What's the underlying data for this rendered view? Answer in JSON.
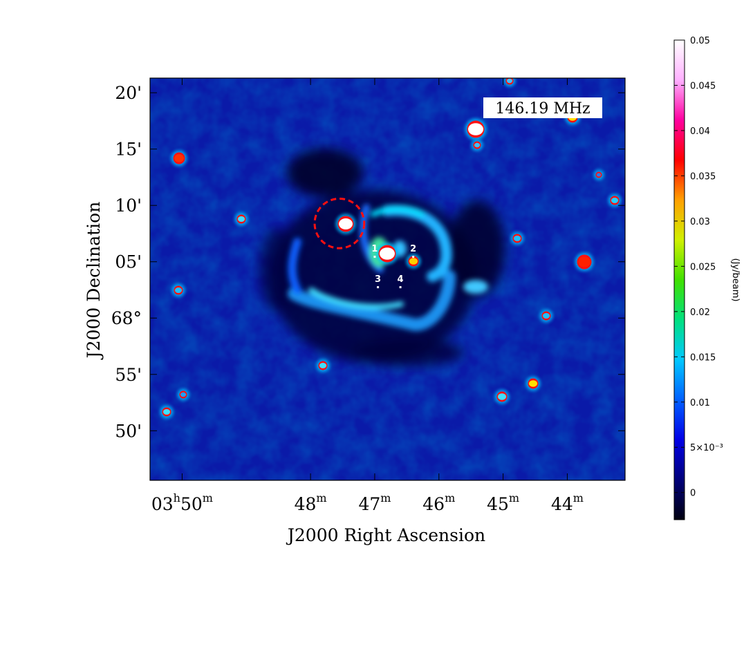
{
  "chart_data": {
    "type": "heatmap",
    "frequency_label": "146.19 MHz",
    "xlabel": "J2000 Right Ascension",
    "ylabel": "J2000 Declination",
    "x_ticks": [
      {
        "main": "03",
        "sup1": "h",
        "mid": "50",
        "sup2": "m",
        "ra_min": 50
      },
      {
        "main": "48",
        "sup1": "",
        "mid": "",
        "sup2": "m",
        "ra_min": 48
      },
      {
        "main": "47",
        "sup1": "",
        "mid": "",
        "sup2": "m",
        "ra_min": 47
      },
      {
        "main": "46",
        "sup1": "",
        "mid": "",
        "sup2": "m",
        "ra_min": 46
      },
      {
        "main": "45",
        "sup1": "",
        "mid": "",
        "sup2": "m",
        "ra_min": 45
      },
      {
        "main": "44",
        "sup1": "",
        "mid": "",
        "sup2": "m",
        "ra_min": 44
      }
    ],
    "x_range_ra_min": [
      50.5,
      43.1
    ],
    "y_ticks": [
      {
        "label": "20'",
        "dec_arcmin": 20
      },
      {
        "label": "15'",
        "dec_arcmin": 15
      },
      {
        "label": "10'",
        "dec_arcmin": 10
      },
      {
        "label": "05'",
        "dec_arcmin": 5
      },
      {
        "label": "68°",
        "dec_arcmin": 0
      },
      {
        "label": "55'",
        "dec_arcmin": -5
      },
      {
        "label": "50'",
        "dec_arcmin": -10
      }
    ],
    "y_range_dec_arcmin": [
      -14.4,
      21.3
    ],
    "colorbar": {
      "label": "(Jy/beam)",
      "range": [
        -0.003,
        0.05
      ],
      "ticks": [
        {
          "label": "0.05",
          "value": 0.05
        },
        {
          "label": "0.045",
          "value": 0.045
        },
        {
          "label": "0.04",
          "value": 0.04
        },
        {
          "label": "0.035",
          "value": 0.035
        },
        {
          "label": "0.03",
          "value": 0.03
        },
        {
          "label": "0.025",
          "value": 0.025
        },
        {
          "label": "0.02",
          "value": 0.02
        },
        {
          "label": "0.015",
          "value": 0.015
        },
        {
          "label": "0.01",
          "value": 0.01
        },
        {
          "label": "5×10⁻³",
          "value": 0.005
        },
        {
          "label": "0",
          "value": 0
        }
      ],
      "colors": [
        "#000010",
        "#00007a",
        "#0000e6",
        "#0060ff",
        "#00c8ff",
        "#00e080",
        "#40e000",
        "#d0f000",
        "#ffa000",
        "#ff0000",
        "#ff00a0",
        "#ffb0ff",
        "#ffffff"
      ]
    },
    "source_labels": [
      {
        "label": "1",
        "ra_min": 47.0,
        "dec_arcmin": 5.9
      },
      {
        "label": "2",
        "ra_min": 46.4,
        "dec_arcmin": 5.9
      },
      {
        "label": "3",
        "ra_min": 46.95,
        "dec_arcmin": 3.2
      },
      {
        "label": "4",
        "ra_min": 46.6,
        "dec_arcmin": 3.2
      }
    ],
    "circle_marker": {
      "ra_min": 47.55,
      "dec_arcmin": 8.4,
      "radius_arcmin": 2.2,
      "color": "#ff1010"
    }
  }
}
